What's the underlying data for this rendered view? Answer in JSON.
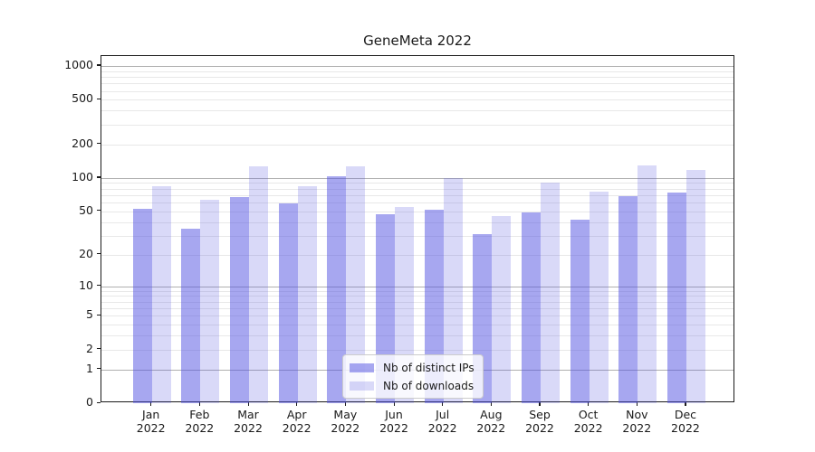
{
  "title": "GeneMeta 2022",
  "chart_data": {
    "type": "bar",
    "title": "GeneMeta 2022",
    "categories": [
      "Jan 2022",
      "Feb 2022",
      "Mar 2022",
      "Apr 2022",
      "May 2022",
      "Jun 2022",
      "Jul 2022",
      "Aug 2022",
      "Sep 2022",
      "Oct 2022",
      "Nov 2022",
      "Dec 2022"
    ],
    "series": [
      {
        "name": "Nb of distinct IPs",
        "color": "rgba(80,80,225,0.5)",
        "values": [
          53,
          35,
          67,
          59,
          104,
          47,
          52,
          31,
          49,
          42,
          69,
          74
        ]
      },
      {
        "name": "Nb of downloads",
        "color": "rgba(80,80,225,0.22)",
        "values": [
          85,
          64,
          126,
          84,
          127,
          55,
          100,
          45,
          90,
          75,
          130,
          117
        ]
      }
    ],
    "xlabel": "",
    "ylabel": "",
    "yscale": "log1p",
    "yticks": [
      0,
      1,
      2,
      5,
      10,
      20,
      50,
      100,
      200,
      500,
      1000
    ],
    "ylim": [
      0,
      1226
    ],
    "grid": true,
    "legend_position": "lower center"
  },
  "colors": {
    "major_grid": "#b0b0b0",
    "minor_grid": "#e8e8e8",
    "spine": "#1a1a1a",
    "text": "#1a1a1a",
    "legend_border": "#cccccc"
  }
}
